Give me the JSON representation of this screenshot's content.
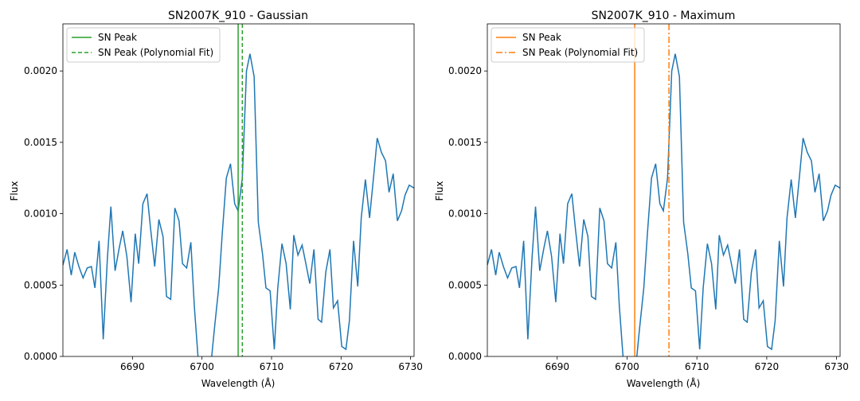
{
  "chart_data": [
    {
      "type": "line",
      "title": "SN2007K_910 - Gaussian",
      "xlabel": "Wavelength (Å)",
      "ylabel": "Flux",
      "xlim": [
        6680.0,
        6730.5
      ],
      "ylim": [
        0.0,
        0.00233
      ],
      "xticks": [
        6690,
        6700,
        6710,
        6720,
        6730
      ],
      "yticks": [
        0.0,
        0.0005,
        0.001,
        0.0015,
        0.002
      ],
      "ytick_labels": [
        "0.0000",
        "0.0005",
        "0.0010",
        "0.0015",
        "0.0020"
      ],
      "grid": false,
      "legend": "top-left",
      "series": [
        {
          "color": "#1f77b4",
          "x": [
            6680.0,
            6680.6,
            6681.2,
            6681.7,
            6682.3,
            6682.9,
            6683.5,
            6684.1,
            6684.6,
            6685.2,
            6685.8,
            6686.4,
            6686.9,
            6687.5,
            6688.1,
            6688.6,
            6689.2,
            6689.8,
            6690.4,
            6690.9,
            6691.5,
            6692.1,
            6692.6,
            6693.2,
            6693.8,
            6694.4,
            6694.9,
            6695.5,
            6696.1,
            6696.7,
            6697.2,
            6697.8,
            6698.4,
            6698.9,
            6699.5,
            6700.1,
            6700.7,
            6701.2,
            6701.8,
            6702.4,
            6702.9,
            6703.5,
            6704.1,
            6704.7,
            6705.2,
            6705.8,
            6706.4,
            6706.9,
            6707.5,
            6708.1,
            6708.7,
            6709.2,
            6709.8,
            6710.4,
            6710.9,
            6711.5,
            6712.1,
            6712.7,
            6713.2,
            6713.8,
            6714.4,
            6714.9,
            6715.5,
            6716.1,
            6716.7,
            6717.2,
            6717.8,
            6718.4,
            6718.9,
            6719.5,
            6720.1,
            6720.7,
            6721.2,
            6721.8,
            6722.4,
            6722.9,
            6723.5,
            6724.1,
            6724.7,
            6725.2,
            6725.8,
            6726.4,
            6726.9,
            6727.5,
            6728.1,
            6728.7,
            6729.2,
            6729.8,
            6730.5
          ],
          "y": [
            0.00064,
            0.00075,
            0.00057,
            0.00073,
            0.00063,
            0.00055,
            0.00062,
            0.00063,
            0.00048,
            0.00081,
            0.00012,
            0.00069,
            0.00105,
            0.0006,
            0.00076,
            0.00088,
            0.0007,
            0.00038,
            0.00086,
            0.00065,
            0.00107,
            0.00114,
            0.0009,
            0.00063,
            0.00096,
            0.00084,
            0.00042,
            0.0004,
            0.00104,
            0.00095,
            0.00065,
            0.00062,
            0.0008,
            0.00035,
            -5e-05,
            -0.0004,
            -0.0003,
            -0.0001,
            0.0002,
            0.00048,
            0.00085,
            0.00125,
            0.00135,
            0.00107,
            0.00102,
            0.00125,
            0.002,
            0.00212,
            0.00196,
            0.00094,
            0.00072,
            0.00048,
            0.00046,
            5e-05,
            0.00048,
            0.00079,
            0.00065,
            0.00033,
            0.00085,
            0.00071,
            0.00078,
            0.00066,
            0.00051,
            0.00075,
            0.00026,
            0.00024,
            0.00059,
            0.00075,
            0.00034,
            0.00039,
            7e-05,
            5e-05,
            0.00025,
            0.00081,
            0.00049,
            0.00097,
            0.00124,
            0.00097,
            0.00127,
            0.00153,
            0.00143,
            0.00137,
            0.00115,
            0.00128,
            0.00095,
            0.00102,
            0.00113,
            0.0012,
            0.00118
          ]
        }
      ],
      "vlines": [
        {
          "name": "SN Peak",
          "x": 6705.2,
          "color": "#2ca02c",
          "dash": "solid"
        },
        {
          "name": "SN Peak (Polynomial Fit)",
          "x": 6705.8,
          "color": "#2ca02c",
          "dash": "dashed"
        }
      ]
    },
    {
      "type": "line",
      "title": "SN2007K_910 - Maximum",
      "xlabel": "Wavelength (Å)",
      "ylabel": "Flux",
      "xlim": [
        6680.0,
        6730.5
      ],
      "ylim": [
        0.0,
        0.00233
      ],
      "xticks": [
        6690,
        6700,
        6710,
        6720,
        6730
      ],
      "yticks": [
        0.0,
        0.0005,
        0.001,
        0.0015,
        0.002
      ],
      "ytick_labels": [
        "0.0000",
        "0.0005",
        "0.0010",
        "0.0015",
        "0.0020"
      ],
      "grid": false,
      "legend": "top-left",
      "series": [
        {
          "color": "#1f77b4",
          "x": [
            6680.0,
            6680.6,
            6681.2,
            6681.7,
            6682.3,
            6682.9,
            6683.5,
            6684.1,
            6684.6,
            6685.2,
            6685.8,
            6686.4,
            6686.9,
            6687.5,
            6688.1,
            6688.6,
            6689.2,
            6689.8,
            6690.4,
            6690.9,
            6691.5,
            6692.1,
            6692.6,
            6693.2,
            6693.8,
            6694.4,
            6694.9,
            6695.5,
            6696.1,
            6696.7,
            6697.2,
            6697.8,
            6698.4,
            6698.9,
            6699.5,
            6700.1,
            6700.7,
            6701.2,
            6701.8,
            6702.4,
            6702.9,
            6703.5,
            6704.1,
            6704.7,
            6705.2,
            6705.8,
            6706.4,
            6706.9,
            6707.5,
            6708.1,
            6708.7,
            6709.2,
            6709.8,
            6710.4,
            6710.9,
            6711.5,
            6712.1,
            6712.7,
            6713.2,
            6713.8,
            6714.4,
            6714.9,
            6715.5,
            6716.1,
            6716.7,
            6717.2,
            6717.8,
            6718.4,
            6718.9,
            6719.5,
            6720.1,
            6720.7,
            6721.2,
            6721.8,
            6722.4,
            6722.9,
            6723.5,
            6724.1,
            6724.7,
            6725.2,
            6725.8,
            6726.4,
            6726.9,
            6727.5,
            6728.1,
            6728.7,
            6729.2,
            6729.8,
            6730.5
          ],
          "y": [
            0.00064,
            0.00075,
            0.00057,
            0.00073,
            0.00063,
            0.00055,
            0.00062,
            0.00063,
            0.00048,
            0.00081,
            0.00012,
            0.00069,
            0.00105,
            0.0006,
            0.00076,
            0.00088,
            0.0007,
            0.00038,
            0.00086,
            0.00065,
            0.00107,
            0.00114,
            0.0009,
            0.00063,
            0.00096,
            0.00084,
            0.00042,
            0.0004,
            0.00104,
            0.00095,
            0.00065,
            0.00062,
            0.0008,
            0.00035,
            -5e-05,
            -0.0004,
            -0.0003,
            -0.0001,
            0.0002,
            0.00048,
            0.00085,
            0.00125,
            0.00135,
            0.00107,
            0.00102,
            0.00125,
            0.002,
            0.00212,
            0.00196,
            0.00094,
            0.00072,
            0.00048,
            0.00046,
            5e-05,
            0.00048,
            0.00079,
            0.00065,
            0.00033,
            0.00085,
            0.00071,
            0.00078,
            0.00066,
            0.00051,
            0.00075,
            0.00026,
            0.00024,
            0.00059,
            0.00075,
            0.00034,
            0.00039,
            7e-05,
            5e-05,
            0.00025,
            0.00081,
            0.00049,
            0.00097,
            0.00124,
            0.00097,
            0.00127,
            0.00153,
            0.00143,
            0.00137,
            0.00115,
            0.00128,
            0.00095,
            0.00102,
            0.00113,
            0.0012,
            0.00118
          ]
        }
      ],
      "vlines": [
        {
          "name": "SN Peak",
          "x": 6701.1,
          "color": "#ff7f0e",
          "dash": "solid"
        },
        {
          "name": "SN Peak (Polynomial Fit)",
          "x": 6706.0,
          "color": "#ff7f0e",
          "dash": "dashdot"
        }
      ]
    }
  ]
}
